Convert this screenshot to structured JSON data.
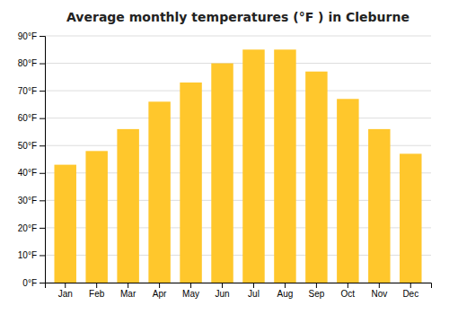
{
  "chart_data": {
    "type": "bar",
    "title": "Average monthly temperatures (°F ) in Cleburne",
    "categories": [
      "Jan",
      "Feb",
      "Mar",
      "Apr",
      "May",
      "Jun",
      "Jul",
      "Aug",
      "Sep",
      "Oct",
      "Nov",
      "Dec"
    ],
    "values": [
      43,
      48,
      56,
      66,
      73,
      80,
      85,
      85,
      77,
      67,
      56,
      47
    ],
    "color": "#FFC72C",
    "ylim": [
      0,
      90
    ],
    "yticks": [
      {
        "value": 0,
        "label": "0°F"
      },
      {
        "value": 10,
        "label": "10°F"
      },
      {
        "value": 20,
        "label": "20°F"
      },
      {
        "value": 30,
        "label": "30°F"
      },
      {
        "value": 40,
        "label": "40°F"
      },
      {
        "value": 50,
        "label": "50°F"
      },
      {
        "value": 60,
        "label": "60°F"
      },
      {
        "value": 70,
        "label": "70°F"
      },
      {
        "value": 80,
        "label": "80°F"
      },
      {
        "value": 90,
        "label": "90°F"
      }
    ],
    "grid": true
  }
}
